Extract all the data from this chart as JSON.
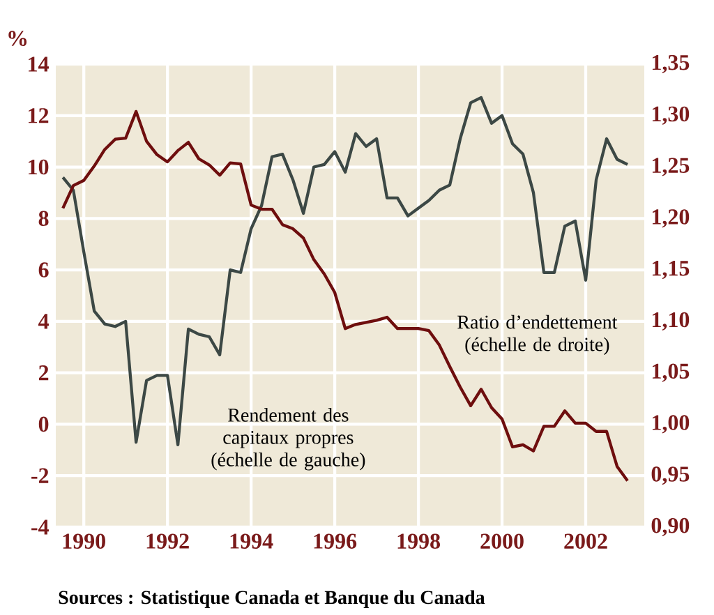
{
  "chart_data": {
    "type": "line",
    "ylabel": "%",
    "annotations": [
      "Sources : Statistique Canada et Banque du Canada"
    ],
    "xlim": [
      1989.33,
      2003.4
    ],
    "xticks": [
      1990,
      1992,
      1994,
      1996,
      1998,
      2000,
      2002
    ],
    "ylim": [
      -4,
      14
    ],
    "yticks": [
      -4,
      -2,
      0,
      2,
      4,
      6,
      8,
      10,
      12,
      14
    ],
    "y2lim": [
      0.9,
      1.35
    ],
    "y2ticks": [
      {
        "value": 0.9,
        "label": "0,90"
      },
      {
        "value": 0.95,
        "label": "0,95"
      },
      {
        "value": 1.0,
        "label": "1,00"
      },
      {
        "value": 1.05,
        "label": "1,05"
      },
      {
        "value": 1.1,
        "label": "1,10"
      },
      {
        "value": 1.15,
        "label": "1,15"
      },
      {
        "value": 1.2,
        "label": "1,20"
      },
      {
        "value": 1.25,
        "label": "1,25"
      },
      {
        "value": 1.3,
        "label": "1,30"
      },
      {
        "value": 1.35,
        "label": "1,35"
      }
    ],
    "grid": true,
    "marker": "none",
    "line_style": "solid",
    "x": [
      1989.5,
      1989.75,
      1990,
      1990.25,
      1990.5,
      1990.75,
      1991,
      1991.25,
      1991.5,
      1991.75,
      1992,
      1992.25,
      1992.5,
      1992.75,
      1993,
      1993.25,
      1993.5,
      1993.75,
      1994,
      1994.25,
      1994.5,
      1994.75,
      1995,
      1995.25,
      1995.5,
      1995.75,
      1996,
      1996.25,
      1996.5,
      1996.75,
      1997,
      1997.25,
      1997.5,
      1997.75,
      1998,
      1998.25,
      1998.5,
      1998.75,
      1999,
      1999.25,
      1999.5,
      1999.75,
      2000,
      2000.25,
      2000.5,
      2000.75,
      2001,
      2001.25,
      2001.5,
      2001.75,
      2002,
      2002.25,
      2002.5,
      2002.75,
      2003
    ],
    "series": [
      {
        "name": "Rendement des capitaux propres (échelle de gauche)",
        "color": "#3c4845",
        "values": [
          9.6,
          9.1,
          6.7,
          4.4,
          3.9,
          3.8,
          4.0,
          -0.7,
          1.7,
          1.9,
          1.9,
          -0.8,
          3.7,
          3.5,
          3.4,
          2.7,
          6.0,
          5.9,
          7.6,
          8.5,
          10.4,
          10.5,
          9.5,
          8.2,
          10.0,
          10.1,
          10.6,
          9.8,
          11.3,
          10.8,
          11.1,
          8.8,
          8.8,
          8.1,
          8.4,
          8.7,
          9.1,
          9.3,
          11.1,
          12.5,
          12.7,
          11.7,
          12.0,
          10.9,
          10.5,
          9.0,
          5.9,
          5.9,
          7.7,
          7.9,
          5.6,
          9.5,
          11.1,
          10.3,
          10.1
        ]
      },
      {
        "name": "Ratio d’endettement (échelle de droite)",
        "color": "#6e0e0e",
        "axis": "y2",
        "values": [
          1.21,
          1.232,
          1.237,
          1.251,
          1.267,
          1.277,
          1.278,
          1.304,
          1.275,
          1.262,
          1.255,
          1.266,
          1.274,
          1.258,
          1.252,
          1.242,
          1.254,
          1.253,
          1.213,
          1.209,
          1.209,
          1.194,
          1.19,
          1.181,
          1.16,
          1.146,
          1.128,
          1.093,
          1.097,
          1.099,
          1.101,
          1.104,
          1.093,
          1.093,
          1.093,
          1.091,
          1.077,
          1.056,
          1.036,
          1.018,
          1.034,
          1.016,
          1.005,
          0.978,
          0.98,
          0.974,
          0.998,
          0.998,
          1.013,
          1.001,
          1.001,
          0.993,
          0.993,
          0.959,
          0.945
        ]
      }
    ]
  }
}
